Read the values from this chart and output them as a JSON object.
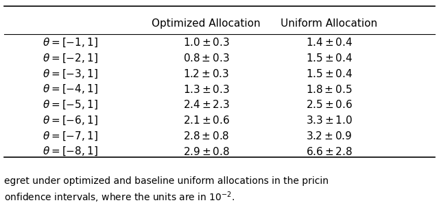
{
  "col_headers": [
    "",
    "Optimized Allocation",
    "Uniform Allocation"
  ],
  "rows": [
    {
      "label": "$\\theta = [-1, 1]$",
      "opt": "$1.0 \\pm 0.3$",
      "uni": "$1.4 \\pm 0.4$"
    },
    {
      "label": "$\\theta = [-2, 1]$",
      "opt": "$0.8 \\pm 0.3$",
      "uni": "$1.5 \\pm 0.4$"
    },
    {
      "label": "$\\theta = [-3, 1]$",
      "opt": "$1.2 \\pm 0.3$",
      "uni": "$1.5 \\pm 0.4$"
    },
    {
      "label": "$\\theta = [-4, 1]$",
      "opt": "$1.3 \\pm 0.3$",
      "uni": "$1.8 \\pm 0.5$"
    },
    {
      "label": "$\\theta = [-5, 1]$",
      "opt": "$2.4 \\pm 2.3$",
      "uni": "$2.5 \\pm 0.6$"
    },
    {
      "label": "$\\theta = [-6, 1]$",
      "opt": "$2.1 \\pm 0.6$",
      "uni": "$3.3 \\pm 1.0$"
    },
    {
      "label": "$\\theta = [-7, 1]$",
      "opt": "$2.8 \\pm 0.8$",
      "uni": "$3.2 \\pm 0.9$"
    },
    {
      "label": "$\\theta = [-8, 1]$",
      "opt": "$2.9 \\pm 0.8$",
      "uni": "$6.6 \\pm 2.8$"
    }
  ],
  "caption_line1": "egret under optimized and baseline uniform allocations in the pricin",
  "caption_line2": "onfidence intervals, where the units are in $10^{-2}$.",
  "bg_color": "#ffffff",
  "text_color": "#000000",
  "header_fontsize": 11,
  "row_fontsize": 11,
  "caption_fontsize": 10
}
